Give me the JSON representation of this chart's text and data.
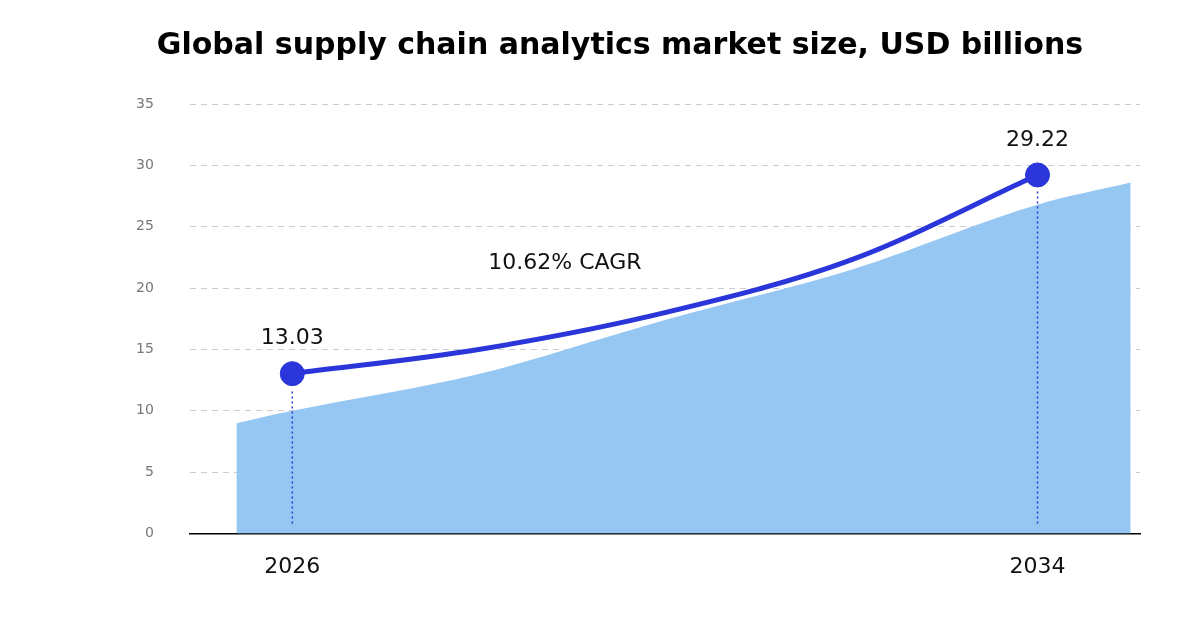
{
  "chart_data": {
    "type": "line",
    "title": "Global supply chain analytics market size, USD billions",
    "x": [
      2026,
      2028,
      2030,
      2032,
      2034
    ],
    "xlim": [
      2024.9,
      2035.1
    ],
    "xticks": [
      2026,
      2034
    ],
    "ylim": [
      0,
      35
    ],
    "yticks": [
      0,
      5,
      10,
      15,
      20,
      25,
      30,
      35
    ],
    "series": [
      {
        "type": "area",
        "marker": "none",
        "color": "#96c6f2",
        "x": [
          2025.4,
          2026,
          2028,
          2030,
          2032,
          2034,
          2035
        ],
        "values": [
          9.0,
          10.0,
          13.0,
          17.4,
          21.5,
          26.8,
          28.6
        ]
      },
      {
        "type": "line",
        "marker": "none",
        "color": "#2a36d9",
        "values": [
          13.03,
          15.0,
          18.0,
          22.3,
          29.22
        ]
      },
      {
        "type": "scatter",
        "marker": "circle",
        "color": "#2a36d9",
        "x": [
          2026,
          2034
        ],
        "values": [
          13.03,
          29.22
        ],
        "value_labels": [
          "13.03",
          "29.22"
        ]
      }
    ],
    "grid": "y",
    "legend": false,
    "ref_lines": [
      {
        "axis": "x",
        "value": 2026,
        "color": "#2a36d9",
        "line_style": "dotted"
      },
      {
        "axis": "x",
        "value": 2034,
        "color": "#2a36d9",
        "line_style": "dotted"
      }
    ],
    "annotations": [
      "10.62% CAGR"
    ]
  }
}
